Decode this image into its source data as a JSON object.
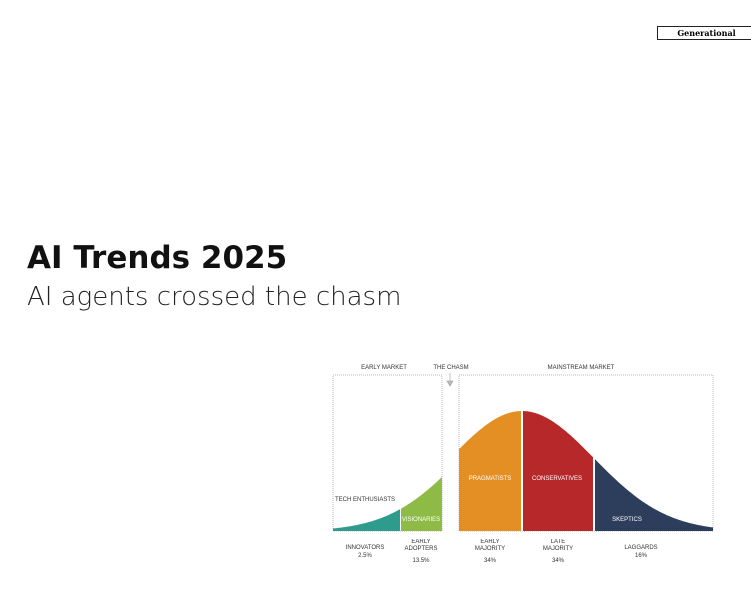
{
  "badge": "Generational",
  "title": "AI Trends 2025",
  "subtitle": "AI agents crossed the chasm",
  "diagram": {
    "sections": [
      "EARLY MARKET",
      "THE CHASM",
      "MAINSTREAM MARKET"
    ],
    "curve_label": "TECH ENTHUSIASTS",
    "segments": [
      {
        "inner": null,
        "name": "INNOVATORS",
        "share": "2.5%"
      },
      {
        "inner": "VISIONARIES",
        "name": "EARLY ADOPTERS",
        "share": "13.5%"
      },
      {
        "inner": "PRAGMATISTS",
        "name": "EARLY MAJORITY",
        "share": "34%"
      },
      {
        "inner": "CONSERVATIVES",
        "name": "LATE MAJORITY",
        "share": "34%"
      },
      {
        "inner": "SKEPTICS",
        "name": "LAGGARDS",
        "share": "16%"
      }
    ]
  }
}
